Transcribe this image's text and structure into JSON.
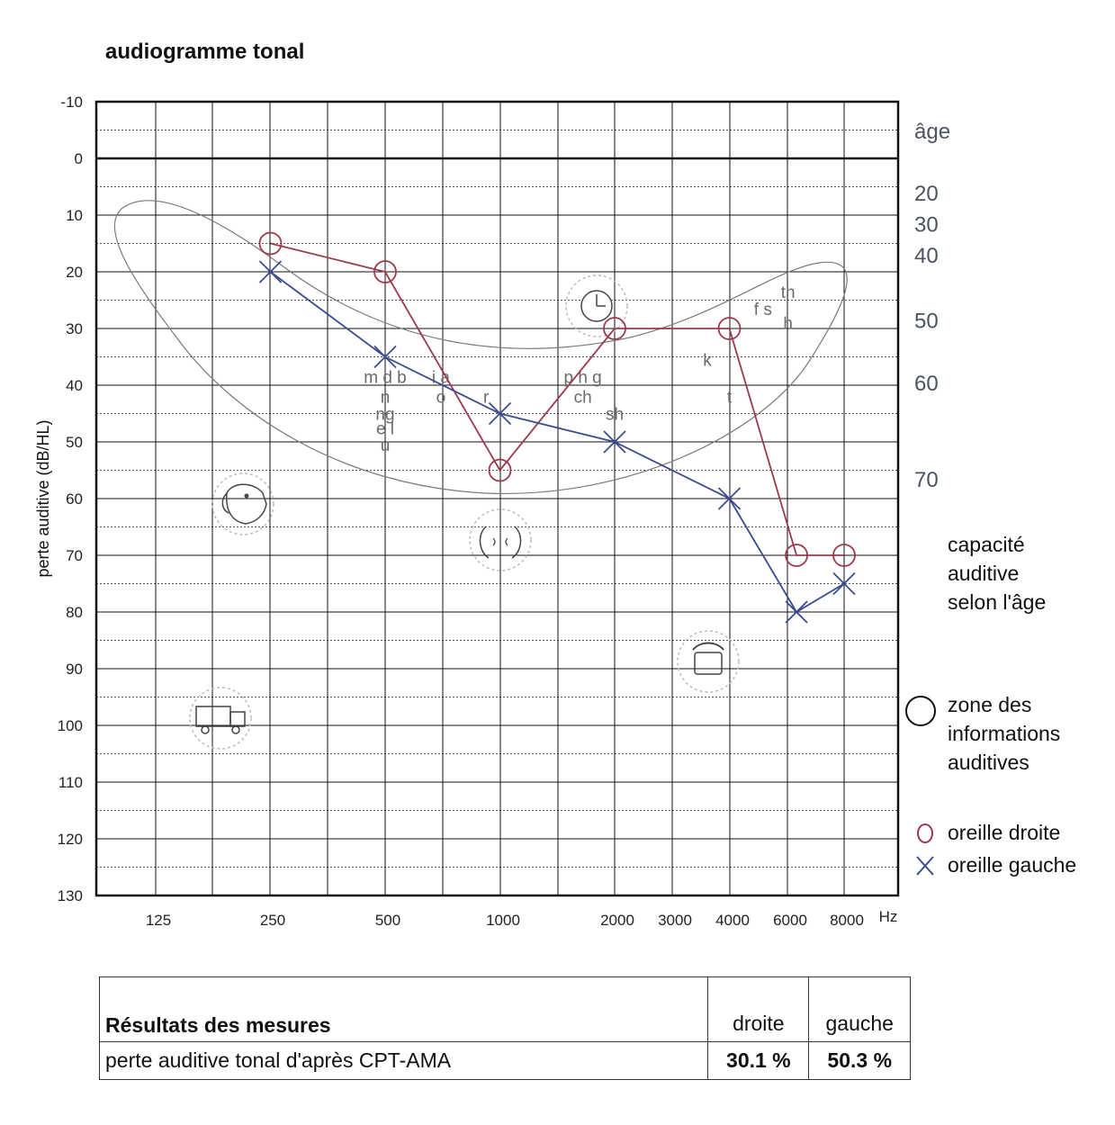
{
  "title": "audiogramme tonal",
  "chart_data": {
    "type": "line",
    "title": "audiogramme tonal",
    "ylabel": "perte auditive (dB/HL)",
    "x_unit": "Hz",
    "x_ticks": [
      "125",
      "250",
      "500",
      "1000",
      "2000",
      "3000",
      "4000",
      "6000",
      "8000"
    ],
    "y_ticks": [
      "-10",
      "0",
      "10",
      "20",
      "30",
      "40",
      "50",
      "60",
      "70",
      "80",
      "90",
      "100",
      "110",
      "120",
      "130"
    ],
    "ylim": [
      -10,
      130
    ],
    "y_inverted": true,
    "grid": true,
    "series": [
      {
        "name": "oreille droite",
        "marker": "circle",
        "color": "#9b3a4c",
        "x": [
          "250",
          "500",
          "1000",
          "2000",
          "4000",
          "6000",
          "8000"
        ],
        "values": [
          15,
          20,
          55,
          30,
          30,
          70,
          70
        ]
      },
      {
        "name": "oreille gauche",
        "marker": "x",
        "color": "#3a4c8f",
        "x": [
          "250",
          "500",
          "1000",
          "2000",
          "4000",
          "6000",
          "8000"
        ],
        "values": [
          20,
          35,
          45,
          50,
          60,
          80,
          75
        ]
      }
    ],
    "age_axis": {
      "title": "âge",
      "labels": [
        {
          "text": "20",
          "db": 6
        },
        {
          "text": "30",
          "db": 11.5
        },
        {
          "text": "40",
          "db": 17
        },
        {
          "text": "50",
          "db": 28.5
        },
        {
          "text": "60",
          "db": 39.5
        },
        {
          "text": "70",
          "db": 56.5
        }
      ]
    },
    "phonemes": [
      {
        "text": "m d b",
        "freq": 500,
        "db": 38.5
      },
      {
        "text": "n",
        "freq": 500,
        "db": 42
      },
      {
        "text": "ng",
        "freq": 500,
        "db": 45
      },
      {
        "text": "e l",
        "freq": 500,
        "db": 47.5
      },
      {
        "text": "u",
        "freq": 500,
        "db": 50.5
      },
      {
        "text": "i a",
        "freq": 700,
        "db": 38.5
      },
      {
        "text": "o",
        "freq": 700,
        "db": 42
      },
      {
        "text": "r",
        "freq": 920,
        "db": 42
      },
      {
        "text": "p h g",
        "freq": 1650,
        "db": 38.5
      },
      {
        "text": "ch",
        "freq": 1650,
        "db": 42
      },
      {
        "text": "sh",
        "freq": 2000,
        "db": 45
      },
      {
        "text": "k",
        "freq": 3500,
        "db": 35.5
      },
      {
        "text": "t",
        "freq": 4000,
        "db": 42
      },
      {
        "text": "f s",
        "freq": 4900,
        "db": 26.5
      },
      {
        "text": "th",
        "freq": 5700,
        "db": 23.5
      },
      {
        "text": "h",
        "freq": 5700,
        "db": 29
      }
    ],
    "icons": [
      "clock-icon",
      "dog-icon",
      "speech-icon",
      "phone-icon",
      "truck-icon"
    ]
  },
  "legend": {
    "age_caption": [
      "capacité",
      "auditive",
      "selon l'âge"
    ],
    "zone_caption": [
      "zone des",
      "informations",
      "auditives"
    ],
    "right_ear": "oreille droite",
    "left_ear": "oreille gauche"
  },
  "results": {
    "title": "Résultats des mesures",
    "col_right": "droite",
    "col_left": "gauche",
    "row_label": "perte auditive tonal d'après CPT-AMA",
    "right_value": "30.1 %",
    "left_value": "50.3 %"
  }
}
